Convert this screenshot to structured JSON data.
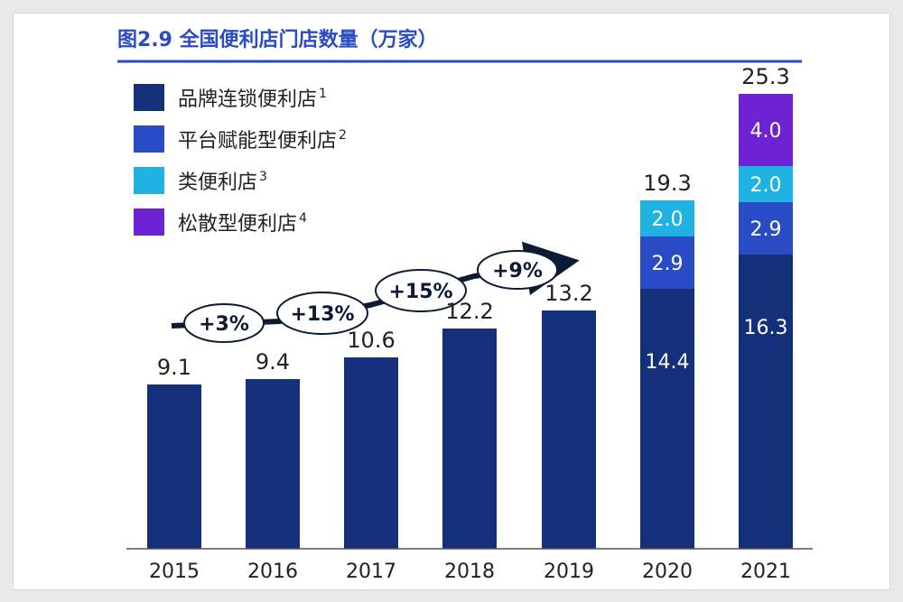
{
  "chart_data": {
    "type": "bar",
    "stacked": true,
    "title": "图2.9 全国便利店门店数量（万家）",
    "categories": [
      "2015",
      "2016",
      "2017",
      "2018",
      "2019",
      "2020",
      "2021"
    ],
    "series": [
      {
        "name": "品牌连锁便利店",
        "sup": "1",
        "color": "#14307a",
        "values": [
          9.1,
          9.4,
          10.6,
          12.2,
          13.2,
          14.4,
          16.3
        ]
      },
      {
        "name": "平台赋能型便利店",
        "sup": "2",
        "color": "#2a4bc6",
        "values": [
          0,
          0,
          0,
          0,
          0,
          2.9,
          2.9
        ]
      },
      {
        "name": "类便利店",
        "sup": "3",
        "color": "#1fb2e3",
        "values": [
          0,
          0,
          0,
          0,
          0,
          2.0,
          2.0
        ]
      },
      {
        "name": "松散型便利店",
        "sup": "4",
        "color": "#6f22d4",
        "values": [
          0,
          0,
          0,
          0,
          0,
          0,
          4.0
        ]
      }
    ],
    "totals": [
      "9.1",
      "9.4",
      "10.6",
      "12.2",
      "13.2",
      "19.3",
      "25.3"
    ],
    "segment_labels": [
      {
        "category": "2020",
        "series": 0,
        "text": "14.4"
      },
      {
        "category": "2020",
        "series": 1,
        "text": "2.9"
      },
      {
        "category": "2020",
        "series": 2,
        "text": "2.0"
      },
      {
        "category": "2021",
        "series": 0,
        "text": "16.3"
      },
      {
        "category": "2021",
        "series": 1,
        "text": "2.9"
      },
      {
        "category": "2021",
        "series": 2,
        "text": "2.0"
      },
      {
        "category": "2021",
        "series": 3,
        "text": "4.0"
      }
    ],
    "growth_annotations": [
      "+3%",
      "+13%",
      "+15%",
      "+9%"
    ],
    "ylim": [
      0,
      27
    ],
    "xlabel": "",
    "ylabel": "",
    "legend": "top-left",
    "grid": false
  },
  "colors": {
    "title": "#2a4bc6",
    "rule": "#2a4bc6",
    "axis": "#555555",
    "arrow": "#0d1a33",
    "text": "#222222"
  }
}
